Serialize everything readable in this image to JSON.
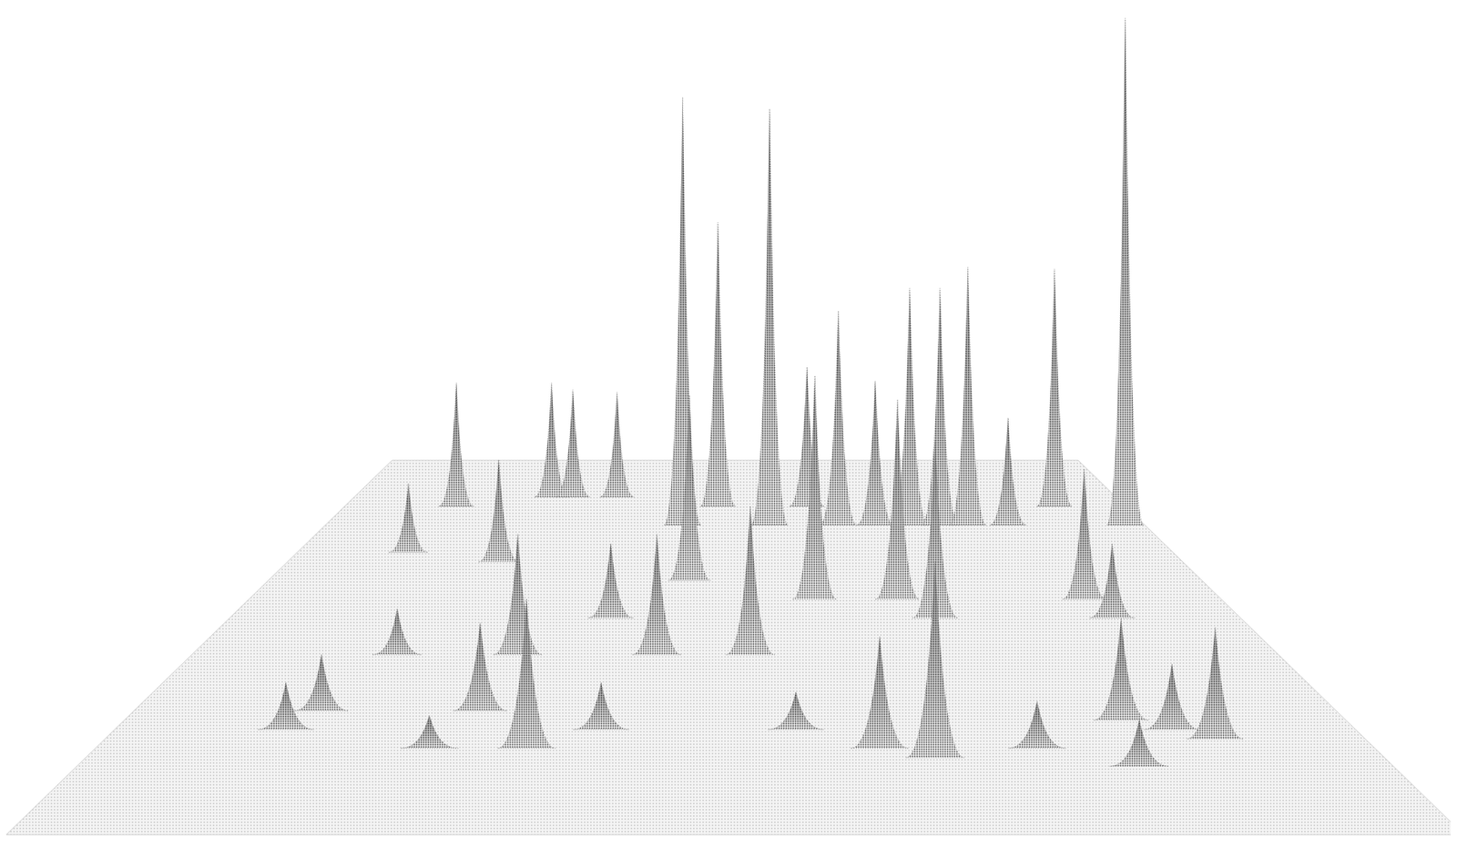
{
  "chart_data": {
    "type": "surface3d",
    "xlim": [
      0,
      100
    ],
    "ylim": [
      0,
      100
    ],
    "zlim": [
      0,
      100
    ],
    "tick_labels": false,
    "x": [
      25.9,
      28.7,
      34.5,
      14.3,
      47.8,
      59.2,
      90.9,
      43.6,
      54.2,
      62.6,
      67.1,
      71.3,
      75.0,
      78.4,
      97.6,
      83.3,
      12.7,
      23.6,
      45.1,
      58.2,
      66.7,
      85.9,
      69.8,
      87.3,
      37.7,
      30.0,
      42.8,
      51.4,
      18.9,
      15.6,
      28.8,
      81.6,
      13.8,
      85.2,
      39.2,
      54.9,
      88.1,
      26.1,
      33.7,
      61.3,
      73.6,
      65.4,
      80.7
    ],
    "y": [
      90.2,
      90.2,
      90.2,
      87.7,
      87.7,
      87.7,
      87.7,
      82.7,
      82.7,
      82.7,
      82.7,
      82.7,
      82.7,
      82.7,
      82.7,
      82.7,
      75.4,
      72.9,
      67.9,
      62.9,
      62.9,
      62.9,
      57.9,
      57.9,
      57.9,
      48.1,
      48.1,
      48.1,
      48.1,
      33.1,
      33.1,
      30.6,
      28.1,
      28.1,
      28.1,
      28.1,
      25.6,
      23.1,
      23.1,
      23.1,
      23.1,
      20.6,
      18.3
    ],
    "z": [
      23.3,
      21.9,
      21.4,
      24.6,
      56.6,
      27.8,
      47.3,
      81.3,
      79.1,
      40.7,
      27.4,
      45.0,
      45.0,
      49.0,
      96.3,
      20.4,
      12.3,
      17.8,
      30.9,
      35.8,
      32.0,
      20.9,
      27.3,
      11.5,
      11.5,
      17.3,
      17.3,
      21.3,
      6.6,
      7.3,
      11.4,
      13.0,
      5.9,
      8.2,
      5.9,
      4.7,
      13.8,
      4.0,
      18.2,
      13.6,
      5.7,
      23.5,
      5.5
    ]
  }
}
